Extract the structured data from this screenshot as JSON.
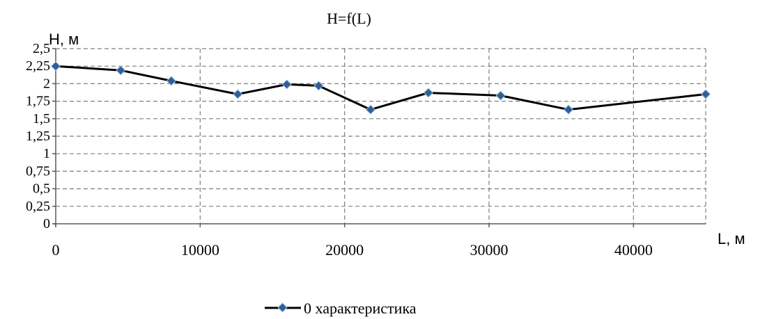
{
  "chart_data": {
    "type": "line",
    "title": "H=f(L)",
    "ylabel": "H, м",
    "xlabel": "L, м",
    "xlim": [
      0,
      45000
    ],
    "ylim": [
      0,
      2.5
    ],
    "x_ticks": [
      0,
      10000,
      20000,
      30000,
      40000
    ],
    "x_tick_labels": [
      "0",
      "10000",
      "20000",
      "30000",
      "40000"
    ],
    "y_ticks": [
      0,
      0.25,
      0.5,
      0.75,
      1,
      1.25,
      1.5,
      1.75,
      2,
      2.25,
      2.5
    ],
    "y_tick_labels": [
      "0",
      "0,25",
      "0,5",
      "0,75",
      "1",
      "1,25",
      "1,5",
      "1,75",
      "2",
      "2,25",
      "2,5"
    ],
    "grid": true,
    "legend_position": "bottom",
    "series": [
      {
        "name": "0 характеристика",
        "color": "#000000",
        "marker_color": "#2e5f96",
        "x": [
          0,
          4500,
          8000,
          12600,
          16000,
          18200,
          21800,
          25800,
          30800,
          35500,
          45000
        ],
        "y": [
          2.25,
          2.19,
          2.04,
          1.85,
          1.99,
          1.97,
          1.63,
          1.87,
          1.83,
          1.63,
          1.85
        ]
      }
    ]
  }
}
